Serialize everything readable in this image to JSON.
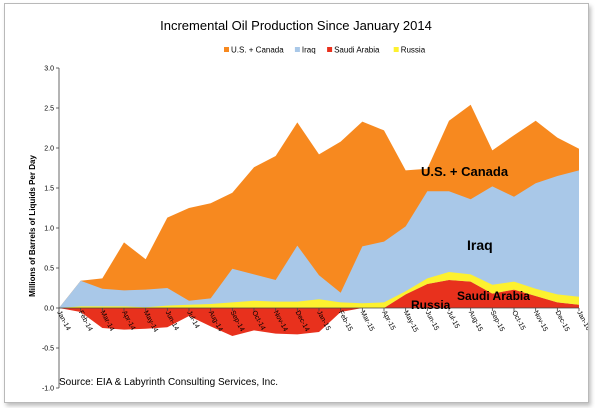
{
  "chart_data": {
    "type": "area",
    "title": "Incremental Oil Production Since January 2014",
    "ylabel": "Millions of Barrels of Liquids Per Day",
    "xlabel": "",
    "ylim": [
      -1.0,
      3.0
    ],
    "yticks": [
      "-1.0",
      "-0.5",
      "0.0",
      "0.5",
      "1.0",
      "1.5",
      "2.0",
      "2.5",
      "3.0"
    ],
    "grid": false,
    "legend_position": "top",
    "stacking": "stacked-on-zero",
    "categories": [
      "Jan-14",
      "Feb-14",
      "Mar-14",
      "Apr-14",
      "May-14",
      "Jun-14",
      "Jul-14",
      "Aug-14",
      "Sep-14",
      "Oct-14",
      "Nov-14",
      "Dec-14",
      "Jan-15",
      "Feb-15",
      "Mar-15",
      "Apr-15",
      "May-15",
      "Jun-15",
      "Jul-15",
      "Aug-15",
      "Sep-15",
      "Oct-15",
      "Nov-15",
      "Dec-15",
      "Jan-16"
    ],
    "series": [
      {
        "name": "U.S. + Canada",
        "color": "#f7891f",
        "values": [
          0.0,
          0.0,
          0.13,
          0.6,
          0.38,
          0.88,
          1.16,
          1.19,
          0.95,
          1.34,
          1.55,
          1.54,
          1.51,
          1.89,
          1.56,
          1.39,
          0.7,
          0.28,
          0.88,
          1.18,
          0.45,
          0.77,
          0.78,
          0.48,
          0.27
        ]
      },
      {
        "name": "Iraq",
        "color": "#a9c8e8",
        "values": [
          0.0,
          0.32,
          0.22,
          0.2,
          0.22,
          0.22,
          0.05,
          0.07,
          0.42,
          0.33,
          0.27,
          0.7,
          0.3,
          0.12,
          0.71,
          0.76,
          0.81,
          1.09,
          1.01,
          0.94,
          1.23,
          1.06,
          1.32,
          1.48,
          1.58
        ]
      },
      {
        "name": "Saudi Arabia",
        "color": "#e8311d",
        "values": [
          0.0,
          -0.05,
          -0.25,
          -0.27,
          -0.26,
          -0.24,
          -0.1,
          -0.23,
          -0.35,
          -0.28,
          -0.32,
          -0.33,
          -0.3,
          -0.05,
          0.0,
          0.0,
          0.17,
          0.3,
          0.35,
          0.33,
          0.18,
          0.23,
          0.15,
          0.07,
          0.04
        ]
      },
      {
        "name": "Russia",
        "color": "#fdf12f",
        "values": [
          0.0,
          0.02,
          0.02,
          0.02,
          0.01,
          0.03,
          0.04,
          0.05,
          0.07,
          0.09,
          0.08,
          0.08,
          0.11,
          0.07,
          0.06,
          0.07,
          0.04,
          0.07,
          0.1,
          0.09,
          0.11,
          0.1,
          0.09,
          0.1,
          0.1
        ]
      }
    ],
    "annotations": [
      "U.S. + Canada",
      "Iraq",
      "Saudi Arabia",
      "Russia"
    ],
    "source": "Source: EIA & Labyrinth Consulting Services, Inc."
  }
}
